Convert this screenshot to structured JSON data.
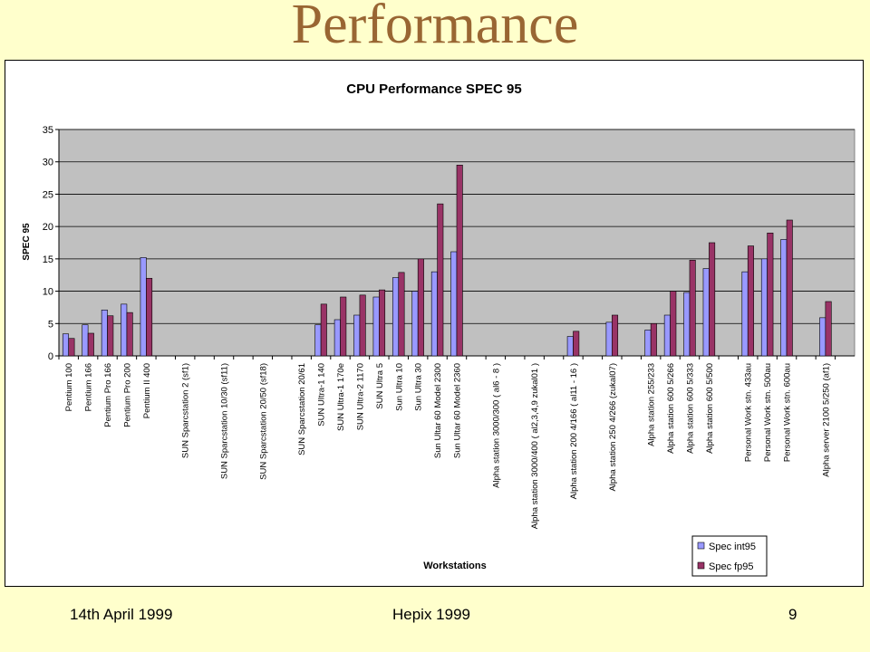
{
  "slide": {
    "title": "Performance",
    "footer_date": "14th April 1999",
    "footer_event": "Hepix 1999",
    "page_number": "9"
  },
  "colors": {
    "background": "#ffffcc",
    "title": "#996633",
    "plot_area": "#c0c0c0",
    "series_int": "#9999ff",
    "series_fp": "#993366"
  },
  "chart_data": {
    "type": "bar",
    "title": "CPU Performance SPEC 95",
    "xlabel": "Workstations",
    "ylabel": "SPEC 95",
    "ylim": [
      0,
      35
    ],
    "yticks": [
      0,
      5,
      10,
      15,
      20,
      25,
      30,
      35
    ],
    "grid": true,
    "legend_position": "bottom-right",
    "categories": [
      "Pentium 100",
      "Pentium 166",
      "Pentium Pro 166",
      "Pentium Pro 200",
      "Pentium II 400",
      "",
      "SUN Sparcstation 2      (sf1)",
      "",
      "SUN Sparcstation 10/30  (sf11)",
      "",
      "SUN Sparcstation 20/50  (sf18)",
      "",
      "SUN Sparcstation 20/61",
      "SUN Ultra-1 140",
      "SUN Ultra-1 170e",
      "SUN Ultra-2 1170",
      "SUN Ultra 5",
      "Sun Ultra 10",
      "Sun Ultra 30",
      "Sun Ultar 60 Model 2300",
      "Sun Ultar 60 Model 2360",
      "",
      "Alpha station 3000/300   ( al6 - 8 )",
      "",
      "Alpha station 3000/400   ( al2,3,4,9 zukal01 )",
      "",
      "Alpha station 200 4/166  ( al11 - 16 )",
      "",
      "Alpha station 250 4/266 (zukal07)",
      "",
      "Alpha station 255/233",
      "Alpha station 600 5/266",
      "Alpha station 600 5/333",
      "Alpha station 600 5/500",
      "",
      "Personal Work stn. 433au",
      "Personal Work stn. 500au",
      "Personal Work stn. 600au",
      "",
      "Alpha server 2100 5/250 (af1)",
      ""
    ],
    "series": [
      {
        "name": "Spec int95",
        "values": [
          3.4,
          4.8,
          7.1,
          8.0,
          15.2,
          0,
          0,
          0,
          0,
          0,
          0,
          0,
          0,
          4.8,
          5.6,
          6.3,
          9.1,
          12.1,
          10.0,
          13.0,
          16.1,
          0,
          0,
          0,
          0,
          0,
          3.0,
          0,
          5.2,
          0,
          4.0,
          6.3,
          9.8,
          13.5,
          0,
          13.0,
          15.0,
          18.0,
          0,
          5.9,
          0
        ]
      },
      {
        "name": "Spec fp95",
        "values": [
          2.7,
          3.5,
          6.2,
          6.7,
          12.0,
          0,
          0,
          0,
          0,
          0,
          0,
          0,
          0,
          8.0,
          9.1,
          9.4,
          10.2,
          12.9,
          15.0,
          23.5,
          29.5,
          0,
          0,
          0,
          0,
          0,
          3.8,
          0,
          6.3,
          0,
          5.0,
          10.0,
          14.8,
          17.5,
          0,
          17.0,
          19.0,
          21.0,
          0,
          8.4,
          0
        ]
      }
    ]
  }
}
